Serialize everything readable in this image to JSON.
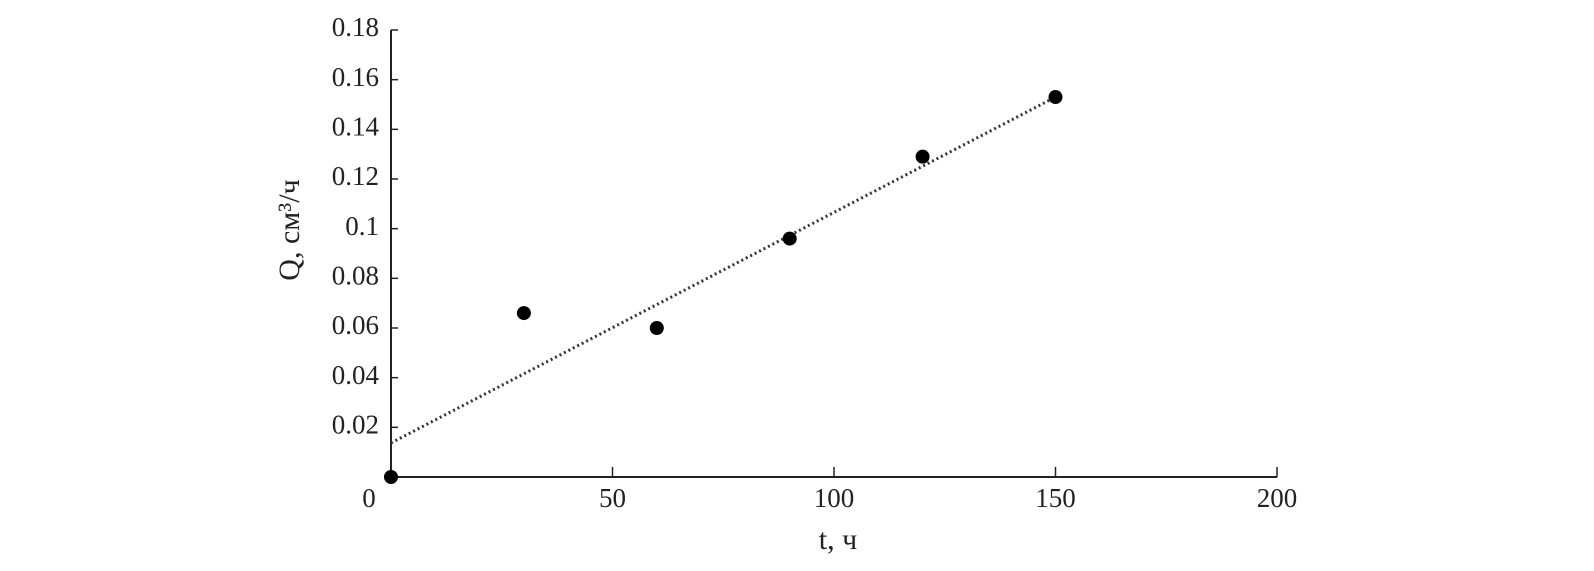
{
  "chart_data": {
    "type": "scatter",
    "x_label": "t, ч",
    "y_label": "Q, см³/ч",
    "x": [
      0,
      30,
      60,
      90,
      120,
      150
    ],
    "values": [
      0,
      0.066,
      0.06,
      0.096,
      0.129,
      0.153
    ],
    "color": "#000000",
    "trend": {
      "x": [
        0,
        150
      ],
      "values": [
        0.0137,
        0.153
      ],
      "color": "#333333"
    },
    "xlim": [
      0,
      200
    ],
    "xticks": [
      0,
      50,
      100,
      150,
      200
    ],
    "ylim": [
      0,
      0.18
    ],
    "yticks": [
      0.02,
      0.04,
      0.06,
      0.08,
      0.1,
      0.12,
      0.14,
      0.16,
      0.18
    ],
    "grid": false
  }
}
